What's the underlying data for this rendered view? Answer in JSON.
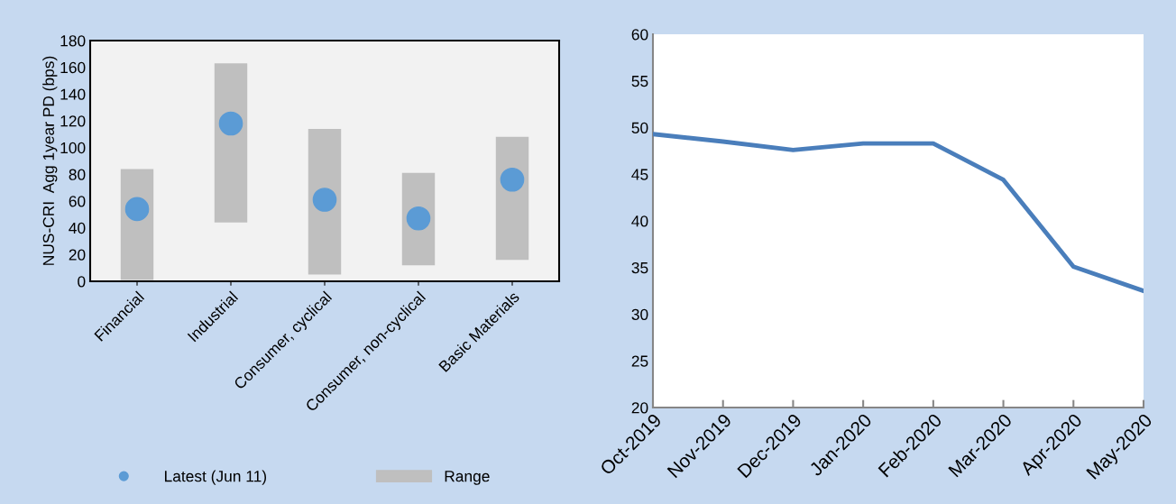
{
  "chart_data": [
    {
      "type": "bar",
      "ylabel": "NUS-CRI  Agg 1year PD (bps)",
      "categories": [
        "Financial",
        "Industrial",
        "Consumer, cyclical",
        "Consumer, non-cyclical",
        "Basic Materials"
      ],
      "series": [
        {
          "name": "Latest (Jun 11)",
          "type": "scatter",
          "color": "#5b9bd5",
          "values": [
            54,
            118,
            61,
            47,
            76
          ]
        },
        {
          "name": "Range",
          "type": "bar",
          "color": "#bfbfbf",
          "base": [
            1,
            44,
            5,
            12,
            16
          ],
          "values": [
            83,
            119,
            109,
            69,
            92
          ]
        }
      ],
      "ylim": [
        0,
        180
      ],
      "yticks": [
        0,
        20,
        40,
        60,
        80,
        100,
        120,
        140,
        160,
        180
      ],
      "grid": false,
      "legend": "bottom",
      "marker": "circle"
    },
    {
      "type": "line",
      "categories": [
        "Oct-2019",
        "Nov-2019",
        "Dec-2019",
        "Jan-2020",
        "Feb-2020",
        "Mar-2020",
        "Apr-2020",
        "May-2020"
      ],
      "series": [
        {
          "color": "#4a7ebb",
          "values": [
            49.3,
            48.5,
            47.6,
            48.3,
            48.3,
            44.4,
            35.1,
            32.5
          ]
        }
      ],
      "ylim": [
        20,
        60
      ],
      "yticks": [
        20,
        25,
        30,
        35,
        40,
        45,
        50,
        55,
        60
      ],
      "grid": false,
      "legend": false,
      "marker": "none",
      "line_style": "solid"
    }
  ]
}
